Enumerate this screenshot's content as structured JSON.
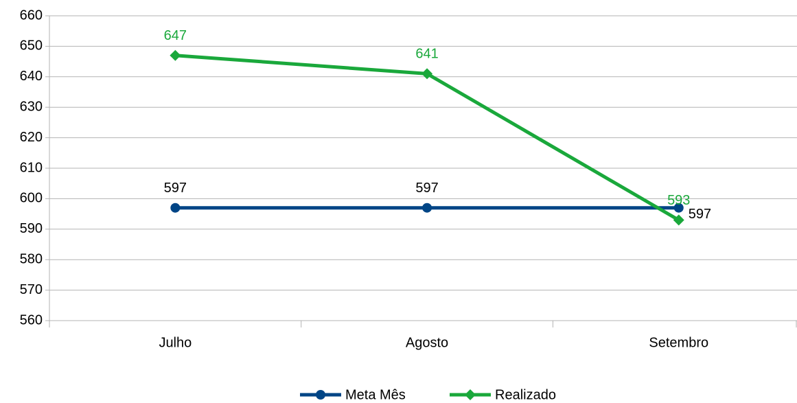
{
  "chart_data": {
    "type": "line",
    "categories": [
      "Julho",
      "Agosto",
      "Setembro"
    ],
    "series": [
      {
        "name": "Meta Mês",
        "color": "#004586",
        "values": [
          597,
          597,
          597
        ]
      },
      {
        "name": "Realizado",
        "color": "#1aa83b",
        "values": [
          647,
          641,
          593
        ]
      }
    ],
    "ylim": [
      560,
      660
    ],
    "yticks": [
      560,
      570,
      580,
      590,
      600,
      610,
      620,
      630,
      640,
      650,
      660
    ],
    "grid": true,
    "legend": "bottom"
  }
}
